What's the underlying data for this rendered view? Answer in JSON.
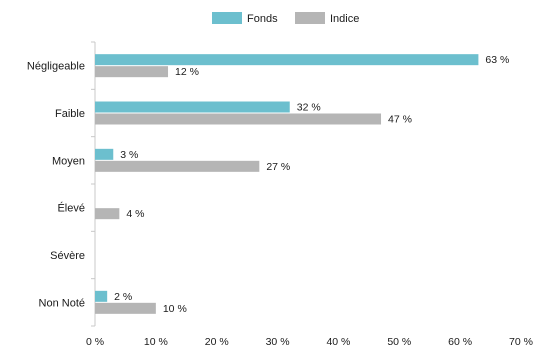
{
  "chart_data": {
    "type": "bar",
    "orientation": "horizontal",
    "categories": [
      "Négligeable",
      "Faible",
      "Moyen",
      "Élevé",
      "Sévère",
      "Non Noté"
    ],
    "series": [
      {
        "name": "Fonds",
        "color": "#6cbfce",
        "values": [
          63,
          32,
          3,
          null,
          null,
          2
        ],
        "labels": [
          "63 %",
          "32 %",
          "3 %",
          "",
          "",
          "2 %"
        ]
      },
      {
        "name": "Indice",
        "color": "#b5b5b5",
        "values": [
          12,
          47,
          27,
          4,
          null,
          10
        ],
        "labels": [
          "12 %",
          "47 %",
          "27 %",
          "4 %",
          "",
          "10 %"
        ]
      }
    ],
    "xlim": [
      0,
      70
    ],
    "xticks": [
      0,
      10,
      20,
      30,
      40,
      50,
      60,
      70
    ],
    "xtick_labels": [
      "0 %",
      "10 %",
      "20 %",
      "30 %",
      "40 %",
      "50 %",
      "60 %",
      "70 %"
    ],
    "legend_position": "top-center",
    "grid": false
  }
}
